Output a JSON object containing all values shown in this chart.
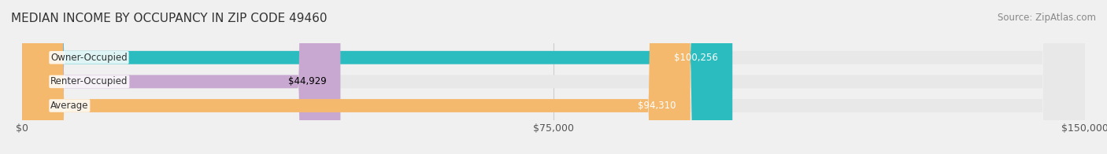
{
  "title": "MEDIAN INCOME BY OCCUPANCY IN ZIP CODE 49460",
  "source": "Source: ZipAtlas.com",
  "categories": [
    "Owner-Occupied",
    "Renter-Occupied",
    "Average"
  ],
  "values": [
    100256,
    44929,
    94310
  ],
  "bar_colors": [
    "#2bbcbf",
    "#c8a8d0",
    "#f5b96e"
  ],
  "label_colors": [
    "white",
    "black",
    "white"
  ],
  "value_labels": [
    "$100,256",
    "$44,929",
    "$94,310"
  ],
  "xlim": [
    0,
    150000
  ],
  "xticks": [
    0,
    75000,
    150000
  ],
  "xtick_labels": [
    "$0",
    "$75,000",
    "$150,000"
  ],
  "background_color": "#f0f0f0",
  "bar_bg_color": "#e8e8e8",
  "title_fontsize": 11,
  "source_fontsize": 8.5,
  "bar_label_fontsize": 8.5,
  "value_label_fontsize": 8.5,
  "tick_fontsize": 9
}
